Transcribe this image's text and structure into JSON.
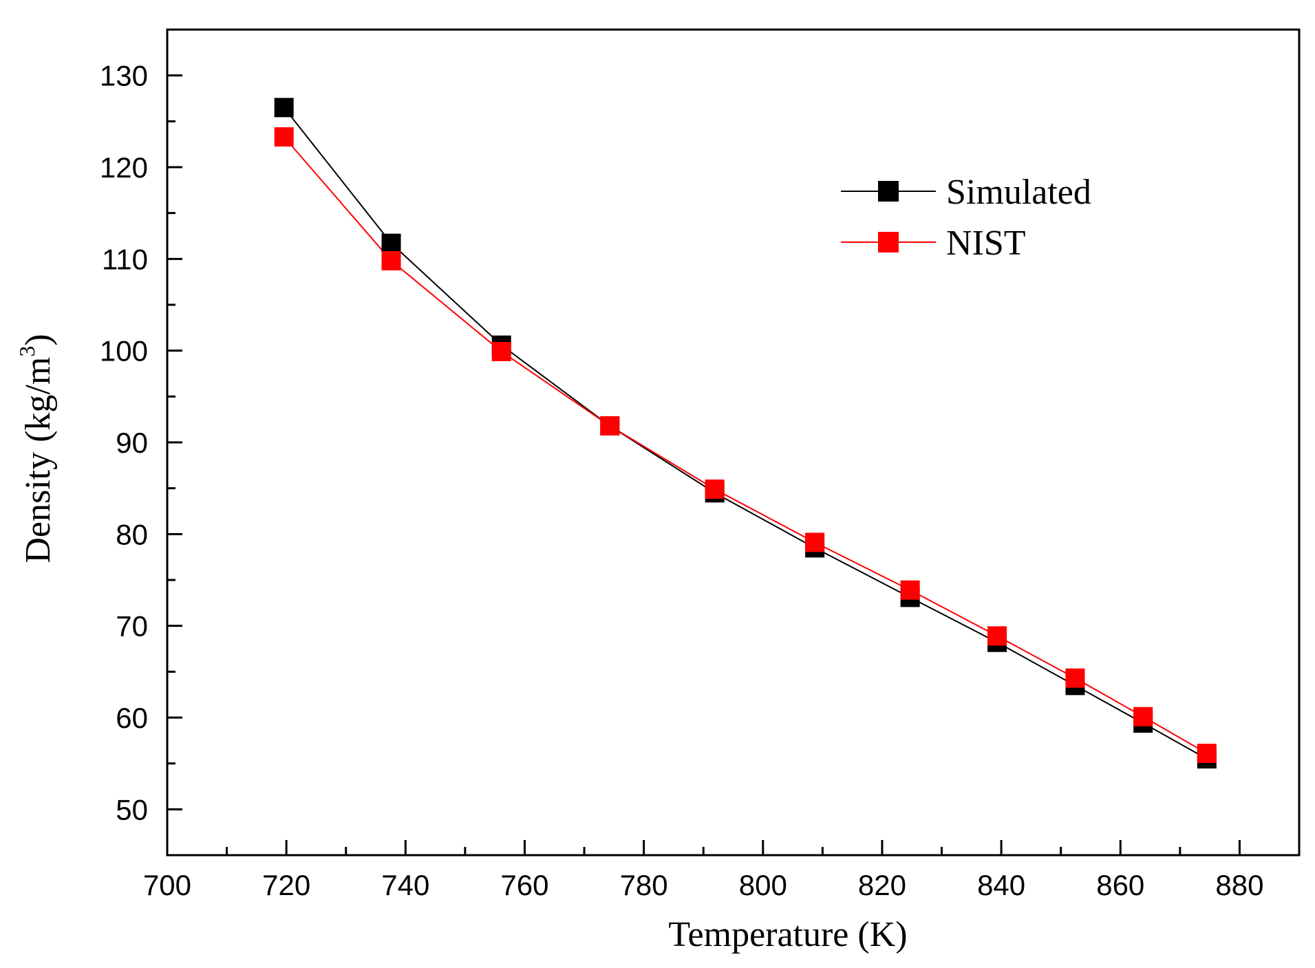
{
  "chart_data": {
    "type": "line",
    "title": "",
    "xlabel": "Temperature (K)",
    "ylabel_main": "Density",
    "ylabel_unit": "(kg/m",
    "ylabel_exp": "3",
    "ylabel_close": ")",
    "xlim": [
      700,
      890
    ],
    "ylim": [
      45,
      135
    ],
    "xticks": [
      700,
      720,
      740,
      760,
      780,
      800,
      820,
      840,
      860,
      880
    ],
    "yticks": [
      50,
      60,
      70,
      80,
      90,
      100,
      110,
      120,
      130
    ],
    "grid": false,
    "legend_position": "top-right",
    "series": [
      {
        "name": "Simulated",
        "color": "#000000",
        "x": [
          719.6,
          737.6,
          756.1,
          774.3,
          791.9,
          808.7,
          824.7,
          839.3,
          852.4,
          863.8,
          874.5
        ],
        "values": [
          126.5,
          111.7,
          100.6,
          91.8,
          84.5,
          78.5,
          73.1,
          68.2,
          63.5,
          59.4,
          55.5
        ]
      },
      {
        "name": "NIST",
        "color": "#ff0000",
        "x": [
          719.6,
          737.6,
          756.1,
          774.3,
          791.9,
          808.7,
          824.7,
          839.3,
          852.4,
          863.8,
          874.5
        ],
        "values": [
          123.3,
          109.8,
          99.9,
          91.8,
          84.9,
          79.1,
          73.9,
          68.9,
          64.3,
          60.1,
          56.1
        ]
      }
    ]
  }
}
